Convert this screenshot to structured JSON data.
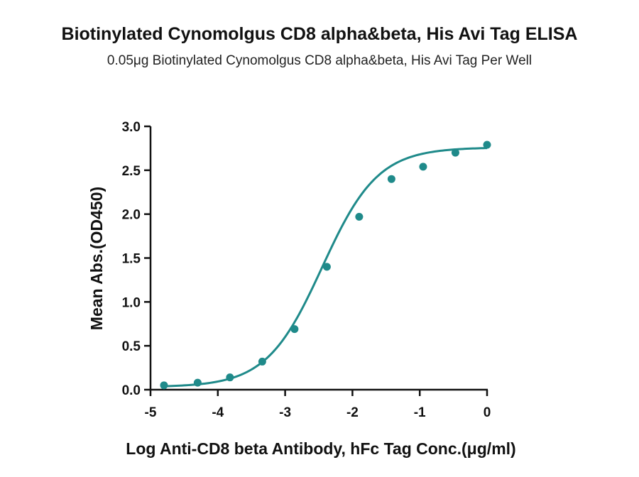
{
  "chart_data": {
    "type": "scatter",
    "title": "Biotinylated Cynomolgus CD8 alpha&beta, His Avi Tag ELISA",
    "subtitle": "0.05μg Biotinylated Cynomolgus CD8 alpha&beta, His Avi Tag Per Well",
    "xlabel": "Log Anti-CD8 beta Antibody, hFc Tag Conc.(μg/ml)",
    "ylabel": "Mean Abs.(OD450)",
    "xlim": [
      -5,
      0
    ],
    "ylim": [
      0,
      3.0
    ],
    "xticks": [
      "-5",
      "-4",
      "-3",
      "-2",
      "-1",
      "0"
    ],
    "yticks": [
      "0.0",
      "0.5",
      "1.0",
      "1.5",
      "2.0",
      "2.5",
      "3.0"
    ],
    "grid": false,
    "series": [
      {
        "color": "#1f8a8a",
        "x": [
          -4.8,
          -4.3,
          -3.82,
          -3.34,
          -2.86,
          -2.38,
          -1.9,
          -1.42,
          -0.95,
          -0.47,
          0.0
        ],
        "y": [
          0.05,
          0.08,
          0.14,
          0.32,
          0.69,
          1.4,
          1.97,
          2.4,
          2.54,
          2.7,
          2.79
        ],
        "fit": {
          "model": "4PL",
          "bottom": 0.03,
          "top": 2.76,
          "logEC50": -2.45,
          "hill": 1.05
        }
      }
    ]
  }
}
